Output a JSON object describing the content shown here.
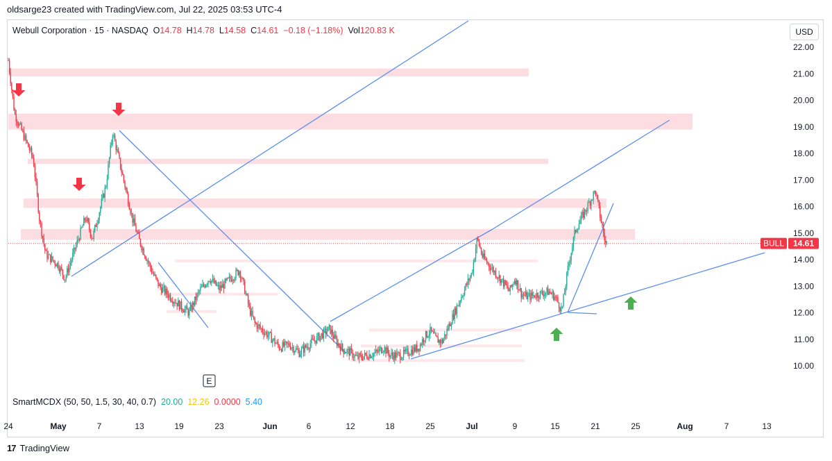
{
  "header": {
    "attribution": "oldsarge23 created with TradingView.com, Jul 22, 2025 03:53 UTC-4"
  },
  "legend": {
    "symbol": "Webull Corporation · 15 · NASDAQ",
    "o_label": "O",
    "o_value": "14.78",
    "h_label": "H",
    "h_value": "14.78",
    "l_label": "L",
    "l_value": "14.58",
    "c_label": "C",
    "c_value": "14.61",
    "change": "−0.18 (−1.18%)",
    "vol_label": "Vol",
    "vol_value": "120.83 K"
  },
  "indicator": {
    "name": "SmartMCDX (50, 50, 1.5, 30, 40, 0.7)",
    "v1": "20.00",
    "v2": "12.26",
    "v3": "0.0000",
    "v4": "5.40",
    "colors": [
      "#22ab94",
      "#f7e600",
      "#f23645",
      "#2196f3"
    ]
  },
  "currency": "USD",
  "footer": {
    "brand": "TradingView",
    "logo": "17"
  },
  "colors": {
    "up": "#22ab94",
    "down": "#f23645",
    "trendline": "#5b8def",
    "zone": "#fbd3d8"
  },
  "chart_data": {
    "type": "candlestick",
    "y_ticks": [
      "22.00",
      "21.00",
      "20.00",
      "19.00",
      "18.00",
      "17.00",
      "16.00",
      "15.00",
      "14.00",
      "13.00",
      "12.00",
      "11.00",
      "10.00"
    ],
    "x_ticks": [
      "24",
      "May",
      "7",
      "13",
      "19",
      "23",
      "Jun",
      "6",
      "12",
      "18",
      "25",
      "Jul",
      "9",
      "15",
      "21",
      "25",
      "Aug",
      "7",
      "13"
    ],
    "price_label": {
      "name": "BULL",
      "value": "14.61"
    },
    "earnings_marker": "E",
    "price_path": [
      [
        "Apr 24",
        21.5
      ],
      [
        "Apr 25",
        19.5
      ],
      [
        "Apr 28",
        17.8
      ],
      [
        "Apr 29",
        15.5
      ],
      [
        "Apr 30",
        14.2
      ],
      [
        "May 1",
        13.8
      ],
      [
        "May 2",
        13.3
      ],
      [
        "May 5",
        15.6
      ],
      [
        "May 6",
        14.8
      ],
      [
        "May 7",
        15.8
      ],
      [
        "May 8",
        16.8
      ],
      [
        "May 9",
        18.8
      ],
      [
        "May 12",
        15.5
      ],
      [
        "May 13",
        14.7
      ],
      [
        "May 14",
        14.1
      ],
      [
        "May 15",
        13.5
      ],
      [
        "May 16",
        13.0
      ],
      [
        "May 19",
        12.3
      ],
      [
        "May 20",
        12.0
      ],
      [
        "May 21",
        12.8
      ],
      [
        "May 22",
        13.3
      ],
      [
        "May 23",
        12.9
      ],
      [
        "May 27",
        13.6
      ],
      [
        "May 28",
        12.9
      ],
      [
        "May 29",
        12.1
      ],
      [
        "May 30",
        11.6
      ],
      [
        "Jun 2",
        11.1
      ],
      [
        "Jun 3",
        10.7
      ],
      [
        "Jun 4",
        10.8
      ],
      [
        "Jun 5",
        10.5
      ],
      [
        "Jun 6",
        10.8
      ],
      [
        "Jun 9",
        11.4
      ],
      [
        "Jun 10",
        10.9
      ],
      [
        "Jun 11",
        10.6
      ],
      [
        "Jun 12",
        10.5
      ],
      [
        "Jun 13",
        10.3
      ],
      [
        "Jun 16",
        10.5
      ],
      [
        "Jun 17",
        10.7
      ],
      [
        "Jun 18",
        10.4
      ],
      [
        "Jun 20",
        10.4
      ],
      [
        "Jun 23",
        10.7
      ],
      [
        "Jun 24",
        11.1
      ],
      [
        "Jun 25",
        11.3
      ],
      [
        "Jun 26",
        11.0
      ],
      [
        "Jun 27",
        10.9
      ],
      [
        "Jun 30",
        12.5
      ],
      [
        "Jul 1",
        13.5
      ],
      [
        "Jul 2",
        14.8
      ],
      [
        "Jul 3",
        14.1
      ],
      [
        "Jul 7",
        13.1
      ],
      [
        "Jul 8",
        12.8
      ],
      [
        "Jul 9",
        13.3
      ],
      [
        "Jul 10",
        12.7
      ],
      [
        "Jul 11",
        12.6
      ],
      [
        "Jul 14",
        12.8
      ],
      [
        "Jul 15",
        12.6
      ],
      [
        "Jul 16",
        12.1
      ],
      [
        "Jul 17",
        13.8
      ],
      [
        "Jul 18",
        15.1
      ],
      [
        "Jul 21",
        16.6
      ],
      [
        "Jul 22",
        14.6
      ]
    ],
    "signals": [
      {
        "type": "sell",
        "date": "Apr 24"
      },
      {
        "type": "sell",
        "date": "May 6"
      },
      {
        "type": "sell",
        "date": "May 9"
      },
      {
        "type": "buy",
        "date": "Jul 15"
      },
      {
        "type": "buy",
        "date": "Jul 24"
      }
    ],
    "zones": [
      {
        "from": 20.9,
        "to": 21.2
      },
      {
        "from": 18.9,
        "to": 19.5
      },
      {
        "from": 17.6,
        "to": 17.8
      },
      {
        "from": 15.95,
        "to": 16.3
      },
      {
        "from": 14.75,
        "to": 15.15
      }
    ]
  }
}
